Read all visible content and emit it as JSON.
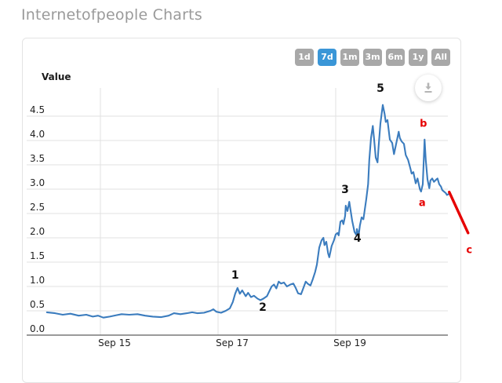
{
  "page": {
    "title": "Internetofpeople Charts"
  },
  "toolbar": {
    "range_buttons": [
      {
        "label": "1d",
        "active": false
      },
      {
        "label": "7d",
        "active": true
      },
      {
        "label": "1m",
        "active": false
      },
      {
        "label": "3m",
        "active": false
      },
      {
        "label": "6m",
        "active": false
      },
      {
        "label": "1y",
        "active": false
      },
      {
        "label": "All",
        "active": false
      }
    ],
    "download_icon": "download-icon",
    "active_color": "#3a96d7",
    "inactive_color": "#a8a8a8"
  },
  "chart_data": {
    "type": "line",
    "title": "",
    "ylabel": "Value",
    "xlabel": "",
    "grid": true,
    "legend": false,
    "ylim": [
      0,
      4.9
    ],
    "x_unit": "days (t = days since Sep 14)",
    "line_color": "#3b7cbe",
    "annotation_color": "#e60000",
    "y_ticks": [
      0,
      0.5,
      1.0,
      1.5,
      2.0,
      2.5,
      3.0,
      3.5,
      4.0,
      4.5
    ],
    "x_ticks": [
      {
        "t": 1,
        "label": "Sep 15"
      },
      {
        "t": 3,
        "label": "Sep 17"
      },
      {
        "t": 5,
        "label": "Sep 19"
      }
    ],
    "series": [
      {
        "name": "Value",
        "points": [
          [
            0.09,
            0.47
          ],
          [
            0.23,
            0.45
          ],
          [
            0.36,
            0.42
          ],
          [
            0.49,
            0.44
          ],
          [
            0.63,
            0.4
          ],
          [
            0.76,
            0.42
          ],
          [
            0.87,
            0.38
          ],
          [
            0.96,
            0.4
          ],
          [
            1.05,
            0.36
          ],
          [
            1.16,
            0.38
          ],
          [
            1.27,
            0.41
          ],
          [
            1.36,
            0.43
          ],
          [
            1.49,
            0.42
          ],
          [
            1.63,
            0.43
          ],
          [
            1.76,
            0.4
          ],
          [
            1.89,
            0.38
          ],
          [
            2.03,
            0.37
          ],
          [
            2.16,
            0.4
          ],
          [
            2.25,
            0.45
          ],
          [
            2.36,
            0.43
          ],
          [
            2.47,
            0.45
          ],
          [
            2.56,
            0.47
          ],
          [
            2.65,
            0.45
          ],
          [
            2.76,
            0.46
          ],
          [
            2.87,
            0.5
          ],
          [
            2.92,
            0.53
          ],
          [
            2.97,
            0.48
          ],
          [
            3.05,
            0.46
          ],
          [
            3.13,
            0.5
          ],
          [
            3.2,
            0.55
          ],
          [
            3.25,
            0.68
          ],
          [
            3.29,
            0.85
          ],
          [
            3.33,
            0.97
          ],
          [
            3.37,
            0.85
          ],
          [
            3.41,
            0.92
          ],
          [
            3.47,
            0.8
          ],
          [
            3.51,
            0.87
          ],
          [
            3.56,
            0.78
          ],
          [
            3.61,
            0.81
          ],
          [
            3.67,
            0.75
          ],
          [
            3.72,
            0.72
          ],
          [
            3.77,
            0.75
          ],
          [
            3.83,
            0.8
          ],
          [
            3.87,
            0.9
          ],
          [
            3.91,
            1.0
          ],
          [
            3.95,
            1.04
          ],
          [
            3.99,
            0.96
          ],
          [
            4.03,
            1.1
          ],
          [
            4.07,
            1.06
          ],
          [
            4.12,
            1.08
          ],
          [
            4.17,
            1.0
          ],
          [
            4.23,
            1.04
          ],
          [
            4.28,
            1.06
          ],
          [
            4.32,
            0.97
          ],
          [
            4.36,
            0.86
          ],
          [
            4.41,
            0.84
          ],
          [
            4.45,
            0.97
          ],
          [
            4.49,
            1.1
          ],
          [
            4.53,
            1.05
          ],
          [
            4.57,
            1.02
          ],
          [
            4.61,
            1.15
          ],
          [
            4.65,
            1.3
          ],
          [
            4.68,
            1.45
          ],
          [
            4.72,
            1.8
          ],
          [
            4.76,
            1.95
          ],
          [
            4.79,
            2.0
          ],
          [
            4.81,
            1.85
          ],
          [
            4.84,
            1.92
          ],
          [
            4.87,
            1.68
          ],
          [
            4.89,
            1.6
          ],
          [
            4.93,
            1.83
          ],
          [
            4.97,
            1.95
          ],
          [
            5.0,
            2.07
          ],
          [
            5.03,
            2.1
          ],
          [
            5.05,
            2.05
          ],
          [
            5.08,
            2.33
          ],
          [
            5.11,
            2.36
          ],
          [
            5.13,
            2.28
          ],
          [
            5.16,
            2.45
          ],
          [
            5.17,
            2.66
          ],
          [
            5.2,
            2.55
          ],
          [
            5.23,
            2.74
          ],
          [
            5.25,
            2.58
          ],
          [
            5.28,
            2.35
          ],
          [
            5.32,
            2.12
          ],
          [
            5.35,
            2.06
          ],
          [
            5.36,
            2.18
          ],
          [
            5.39,
            2.05
          ],
          [
            5.41,
            2.25
          ],
          [
            5.44,
            2.42
          ],
          [
            5.47,
            2.38
          ],
          [
            5.49,
            2.55
          ],
          [
            5.52,
            2.8
          ],
          [
            5.55,
            3.1
          ],
          [
            5.57,
            3.6
          ],
          [
            5.6,
            4.05
          ],
          [
            5.63,
            4.3
          ],
          [
            5.65,
            4.05
          ],
          [
            5.68,
            3.65
          ],
          [
            5.71,
            3.55
          ],
          [
            5.73,
            3.9
          ],
          [
            5.76,
            4.35
          ],
          [
            5.8,
            4.73
          ],
          [
            5.83,
            4.55
          ],
          [
            5.85,
            4.38
          ],
          [
            5.88,
            4.42
          ],
          [
            5.92,
            4.02
          ],
          [
            5.96,
            3.95
          ],
          [
            5.99,
            3.72
          ],
          [
            6.03,
            3.95
          ],
          [
            6.07,
            4.18
          ],
          [
            6.09,
            4.05
          ],
          [
            6.12,
            3.98
          ],
          [
            6.16,
            3.93
          ],
          [
            6.19,
            3.7
          ],
          [
            6.23,
            3.6
          ],
          [
            6.27,
            3.42
          ],
          [
            6.29,
            3.32
          ],
          [
            6.32,
            3.35
          ],
          [
            6.36,
            3.12
          ],
          [
            6.39,
            3.22
          ],
          [
            6.43,
            3.0
          ],
          [
            6.45,
            2.95
          ],
          [
            6.48,
            3.1
          ],
          [
            6.51,
            4.02
          ],
          [
            6.53,
            3.6
          ],
          [
            6.56,
            3.2
          ],
          [
            6.59,
            3.02
          ],
          [
            6.61,
            3.18
          ],
          [
            6.64,
            3.22
          ],
          [
            6.67,
            3.15
          ],
          [
            6.71,
            3.2
          ],
          [
            6.73,
            3.22
          ],
          [
            6.76,
            3.1
          ],
          [
            6.79,
            3.05
          ],
          [
            6.81,
            2.98
          ],
          [
            6.84,
            2.95
          ],
          [
            6.87,
            2.92
          ],
          [
            6.89,
            2.88
          ],
          [
            6.92,
            2.9
          ]
        ]
      }
    ],
    "annotations": {
      "wave_counts": [
        {
          "text": "1",
          "t": 3.29,
          "v": 1.24
        },
        {
          "text": "2",
          "t": 3.76,
          "v": 0.58
        },
        {
          "text": "3",
          "t": 5.16,
          "v": 3.0
        },
        {
          "text": "4",
          "t": 5.37,
          "v": 2.0
        },
        {
          "text": "5",
          "t": 5.76,
          "v": 5.08
        }
      ],
      "abc_labels": [
        {
          "text": "a",
          "t": 6.47,
          "v": 2.73
        },
        {
          "text": "b",
          "t": 6.49,
          "v": 4.36
        },
        {
          "text": "c",
          "t": 7.27,
          "v": 1.77
        }
      ],
      "projection_line": {
        "from": [
          6.93,
          2.94
        ],
        "to": [
          7.25,
          2.1
        ]
      }
    }
  }
}
